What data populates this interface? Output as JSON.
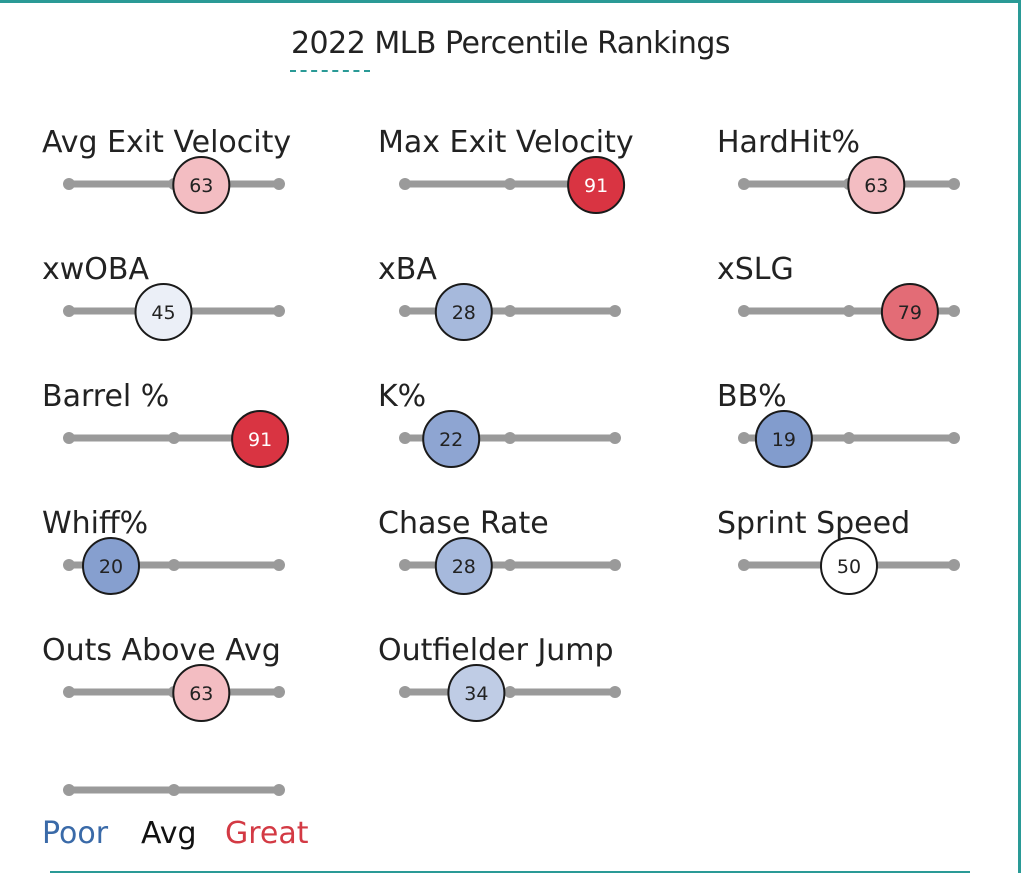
{
  "header": {
    "title": "2022 MLB Percentile Rankings"
  },
  "chart_data": {
    "type": "percentile-slider",
    "title": "2022 MLB Percentile Rankings",
    "range": [
      0,
      100
    ],
    "tick_values": [
      0,
      50,
      100
    ],
    "metrics": [
      {
        "name": "Avg Exit Velocity",
        "percentile": 63
      },
      {
        "name": "Max Exit Velocity",
        "percentile": 91
      },
      {
        "name": "HardHit%",
        "percentile": 63
      },
      {
        "name": "xwOBA",
        "percentile": 45
      },
      {
        "name": "xBA",
        "percentile": 28
      },
      {
        "name": "xSLG",
        "percentile": 79
      },
      {
        "name": "Barrel %",
        "percentile": 91
      },
      {
        "name": "K%",
        "percentile": 22
      },
      {
        "name": "BB%",
        "percentile": 19
      },
      {
        "name": "Whiff%",
        "percentile": 20
      },
      {
        "name": "Chase Rate",
        "percentile": 28
      },
      {
        "name": "Sprint Speed",
        "percentile": 50
      },
      {
        "name": "Outs Above Avg",
        "percentile": 63
      },
      {
        "name": "Outfielder Jump",
        "percentile": 34
      }
    ],
    "legend": {
      "poor": "Poor",
      "avg": "Avg",
      "great": "Great",
      "poor_color": "#3a6aa8",
      "avg_color": "#111111",
      "great_color": "#d33a44"
    },
    "colors": {
      "track": "#9a9a9a",
      "low": "#5e7fbf",
      "mid": "#ffffff",
      "high": "#d93442"
    }
  }
}
